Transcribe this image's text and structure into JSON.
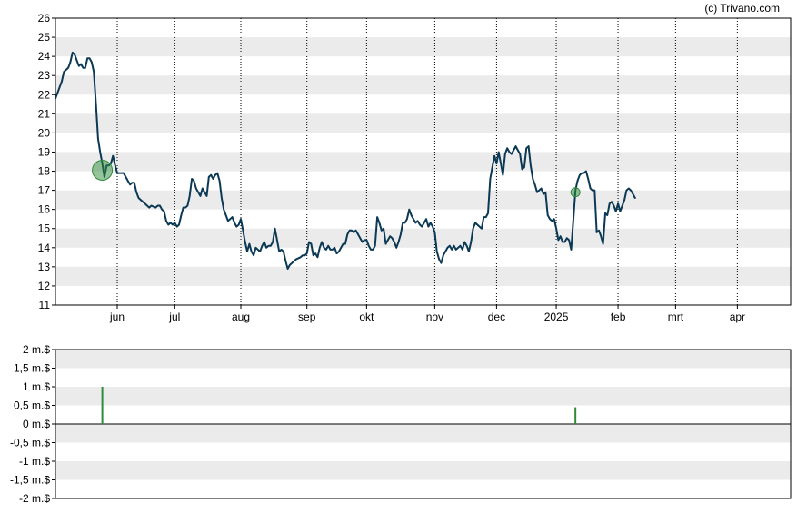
{
  "credit": "(c) Trivano.com",
  "colors": {
    "price_line": "#0b3954",
    "band": "#ebebeb",
    "marker": "#2e8b3a",
    "volume_bar": "#2e8b3a",
    "axis": "#000000"
  },
  "chart_data": [
    {
      "type": "line",
      "name": "price",
      "ylim": [
        11,
        26
      ],
      "yticks": [
        11,
        12,
        13,
        14,
        15,
        16,
        17,
        18,
        19,
        20,
        21,
        22,
        23,
        24,
        25,
        26
      ],
      "xlim": [
        0,
        345
      ],
      "xticks": [
        {
          "label": "jun",
          "x": 29
        },
        {
          "label": "jul",
          "x": 56
        },
        {
          "label": "aug",
          "x": 87
        },
        {
          "label": "sep",
          "x": 118
        },
        {
          "label": "okt",
          "x": 146
        },
        {
          "label": "nov",
          "x": 178
        },
        {
          "label": "dec",
          "x": 207
        },
        {
          "label": "2025",
          "x": 235
        },
        {
          "label": "feb",
          "x": 264
        },
        {
          "label": "mrt",
          "x": 291
        },
        {
          "label": "apr",
          "x": 320
        }
      ],
      "grid": "horizontal bands, dotted vertical lines at month ticks",
      "points": [
        [
          0,
          21.8
        ],
        [
          2,
          22.4
        ],
        [
          3,
          22.7
        ],
        [
          4,
          23.2
        ],
        [
          6,
          23.4
        ],
        [
          7,
          23.7
        ],
        [
          8,
          24.2
        ],
        [
          9,
          24.1
        ],
        [
          10,
          23.8
        ],
        [
          11,
          23.5
        ],
        [
          12,
          23.6
        ],
        [
          13,
          23.4
        ],
        [
          14,
          23.4
        ],
        [
          15,
          23.9
        ],
        [
          16,
          23.9
        ],
        [
          17,
          23.7
        ],
        [
          18,
          23.2
        ],
        [
          19,
          21.5
        ],
        [
          20,
          19.7
        ],
        [
          21,
          19.0
        ],
        [
          22,
          18.4
        ],
        [
          23,
          17.7
        ],
        [
          24,
          18.3
        ],
        [
          25,
          18.3
        ],
        [
          26,
          18.4
        ],
        [
          27,
          18.8
        ],
        [
          28,
          18.3
        ],
        [
          29,
          17.9
        ],
        [
          30,
          17.9
        ],
        [
          31,
          17.9
        ],
        [
          32,
          17.9
        ],
        [
          33,
          17.7
        ],
        [
          34,
          17.5
        ],
        [
          35,
          17.3
        ],
        [
          36,
          17.4
        ],
        [
          37,
          17.4
        ],
        [
          38,
          16.9
        ],
        [
          39,
          16.6
        ],
        [
          40,
          16.5
        ],
        [
          42,
          16.3
        ],
        [
          44,
          16.1
        ],
        [
          45,
          16.2
        ],
        [
          47,
          16.1
        ],
        [
          48,
          16.2
        ],
        [
          49,
          16.2
        ],
        [
          50,
          16.0
        ],
        [
          51,
          15.9
        ],
        [
          52,
          15.4
        ],
        [
          53,
          15.2
        ],
        [
          54,
          15.3
        ],
        [
          55,
          15.2
        ],
        [
          56,
          15.3
        ],
        [
          57,
          15.1
        ],
        [
          58,
          15.2
        ],
        [
          59,
          15.7
        ],
        [
          60,
          16.1
        ],
        [
          61,
          16.1
        ],
        [
          62,
          16.2
        ],
        [
          63,
          16.7
        ],
        [
          64,
          17.6
        ],
        [
          65,
          17.5
        ],
        [
          66,
          17.1
        ],
        [
          67,
          16.9
        ],
        [
          68,
          16.7
        ],
        [
          69,
          17.1
        ],
        [
          70,
          16.9
        ],
        [
          71,
          16.7
        ],
        [
          72,
          17.7
        ],
        [
          73,
          17.8
        ],
        [
          74,
          17.6
        ],
        [
          75,
          17.8
        ],
        [
          76,
          17.9
        ],
        [
          77,
          17.5
        ],
        [
          78,
          16.6
        ],
        [
          79,
          16.0
        ],
        [
          80,
          15.7
        ],
        [
          81,
          15.4
        ],
        [
          82,
          15.5
        ],
        [
          83,
          15.6
        ],
        [
          84,
          15.3
        ],
        [
          85,
          15.1
        ],
        [
          86,
          15.2
        ],
        [
          87,
          15.5
        ],
        [
          88,
          14.9
        ],
        [
          89,
          14.3
        ],
        [
          90,
          13.8
        ],
        [
          91,
          14.2
        ],
        [
          92,
          13.8
        ],
        [
          93,
          13.6
        ],
        [
          94,
          14.0
        ],
        [
          95,
          13.9
        ],
        [
          96,
          13.8
        ],
        [
          97,
          14.1
        ],
        [
          98,
          14.3
        ],
        [
          99,
          14.0
        ],
        [
          100,
          14.1
        ],
        [
          101,
          14.1
        ],
        [
          102,
          14.3
        ],
        [
          103,
          15.0
        ],
        [
          104,
          14.4
        ],
        [
          105,
          13.8
        ],
        [
          106,
          13.9
        ],
        [
          107,
          13.8
        ],
        [
          108,
          13.3
        ],
        [
          109,
          12.9
        ],
        [
          110,
          13.1
        ],
        [
          111,
          13.2
        ],
        [
          112,
          13.3
        ],
        [
          113,
          13.4
        ],
        [
          115,
          13.5
        ],
        [
          116,
          13.6
        ],
        [
          117,
          13.6
        ],
        [
          118,
          13.7
        ],
        [
          119,
          14.3
        ],
        [
          120,
          14.2
        ],
        [
          121,
          13.6
        ],
        [
          122,
          13.7
        ],
        [
          123,
          13.5
        ],
        [
          124,
          14.0
        ],
        [
          125,
          14.3
        ],
        [
          126,
          14.0
        ],
        [
          127,
          13.9
        ],
        [
          128,
          14.1
        ],
        [
          129,
          13.9
        ],
        [
          130,
          13.9
        ],
        [
          131,
          14.0
        ],
        [
          132,
          13.7
        ],
        [
          133,
          13.8
        ],
        [
          134,
          14.0
        ],
        [
          135,
          14.2
        ],
        [
          136,
          14.2
        ],
        [
          137,
          14.7
        ],
        [
          138,
          14.9
        ],
        [
          139,
          14.9
        ],
        [
          140,
          14.8
        ],
        [
          141,
          14.9
        ],
        [
          142,
          14.7
        ],
        [
          143,
          14.5
        ],
        [
          144,
          14.3
        ],
        [
          145,
          14.4
        ],
        [
          146,
          14.4
        ],
        [
          147,
          14.1
        ],
        [
          148,
          13.9
        ],
        [
          149,
          13.9
        ],
        [
          150,
          14.1
        ],
        [
          151,
          15.6
        ],
        [
          152,
          15.3
        ],
        [
          153,
          14.9
        ],
        [
          154,
          15.0
        ],
        [
          155,
          14.2
        ],
        [
          156,
          14.4
        ],
        [
          157,
          14.6
        ],
        [
          158,
          14.5
        ],
        [
          159,
          14.3
        ],
        [
          160,
          14.0
        ],
        [
          161,
          14.3
        ],
        [
          162,
          14.7
        ],
        [
          163,
          15.3
        ],
        [
          164,
          15.3
        ],
        [
          165,
          15.5
        ],
        [
          166,
          16.0
        ],
        [
          167,
          15.7
        ],
        [
          168,
          15.5
        ],
        [
          169,
          15.3
        ],
        [
          170,
          15.4
        ],
        [
          171,
          15.2
        ],
        [
          172,
          15.1
        ],
        [
          173,
          15.3
        ],
        [
          174,
          15.5
        ],
        [
          175,
          15.1
        ],
        [
          176,
          15.3
        ],
        [
          177,
          15.1
        ],
        [
          178,
          14.8
        ],
        [
          179,
          13.8
        ],
        [
          180,
          13.4
        ],
        [
          181,
          13.2
        ],
        [
          182,
          13.6
        ],
        [
          183,
          13.8
        ],
        [
          184,
          14.0
        ],
        [
          185,
          14.1
        ],
        [
          186,
          13.9
        ],
        [
          187,
          14.1
        ],
        [
          188,
          13.9
        ],
        [
          189,
          14.0
        ],
        [
          190,
          14.1
        ],
        [
          191,
          13.9
        ],
        [
          192,
          14.3
        ],
        [
          193,
          14.1
        ],
        [
          194,
          13.8
        ],
        [
          195,
          14.3
        ],
        [
          196,
          15.0
        ],
        [
          197,
          15.3
        ],
        [
          198,
          15.2
        ],
        [
          199,
          15.1
        ],
        [
          200,
          15.0
        ],
        [
          201,
          15.6
        ],
        [
          202,
          15.6
        ],
        [
          203,
          15.8
        ],
        [
          204,
          17.6
        ],
        [
          205,
          18.2
        ],
        [
          206,
          18.8
        ],
        [
          207,
          18.4
        ],
        [
          208,
          19.0
        ],
        [
          209,
          18.4
        ],
        [
          210,
          17.8
        ],
        [
          211,
          18.9
        ],
        [
          212,
          19.2
        ],
        [
          213,
          19.0
        ],
        [
          214,
          18.9
        ],
        [
          215,
          19.1
        ],
        [
          216,
          19.3
        ],
        [
          217,
          19.1
        ],
        [
          218,
          18.9
        ],
        [
          219,
          18.1
        ],
        [
          220,
          18.2
        ],
        [
          221,
          19.2
        ],
        [
          222,
          19.3
        ],
        [
          223,
          18.3
        ],
        [
          224,
          17.6
        ],
        [
          225,
          17.3
        ],
        [
          226,
          16.9
        ],
        [
          227,
          17.0
        ],
        [
          228,
          17.1
        ],
        [
          229,
          16.8
        ],
        [
          230,
          16.9
        ],
        [
          231,
          15.7
        ],
        [
          232,
          15.5
        ],
        [
          233,
          15.4
        ],
        [
          234,
          15.5
        ],
        [
          235,
          15.0
        ],
        [
          236,
          14.4
        ],
        [
          237,
          14.6
        ],
        [
          238,
          14.3
        ],
        [
          239,
          14.3
        ],
        [
          240,
          14.5
        ],
        [
          241,
          14.4
        ],
        [
          242,
          13.9
        ],
        [
          243,
          15.4
        ],
        [
          244,
          17.0
        ],
        [
          245,
          17.5
        ],
        [
          246,
          17.8
        ],
        [
          247,
          17.9
        ],
        [
          248,
          17.9
        ],
        [
          249,
          18.0
        ],
        [
          250,
          17.6
        ],
        [
          251,
          17.1
        ],
        [
          252,
          17.0
        ],
        [
          253,
          17.0
        ],
        [
          254,
          14.8
        ],
        [
          255,
          14.9
        ],
        [
          256,
          14.6
        ],
        [
          257,
          14.2
        ],
        [
          258,
          15.8
        ],
        [
          259,
          15.7
        ],
        [
          260,
          16.3
        ],
        [
          261,
          16.4
        ],
        [
          262,
          16.2
        ],
        [
          263,
          15.9
        ],
        [
          264,
          16.3
        ],
        [
          265,
          15.9
        ],
        [
          266,
          16.2
        ],
        [
          267,
          16.5
        ],
        [
          268,
          17.0
        ],
        [
          269,
          17.1
        ],
        [
          270,
          17.0
        ],
        [
          271,
          16.8
        ],
        [
          272,
          16.6
        ]
      ],
      "markers": [
        {
          "x": 22,
          "y": 18.05,
          "size": "large"
        },
        {
          "x": 244,
          "y": 16.9,
          "size": "small"
        }
      ]
    },
    {
      "type": "bar",
      "name": "volume",
      "ylim": [
        -2,
        2
      ],
      "yticks": [
        {
          "label": "2 m.$",
          "value": 2
        },
        {
          "label": "1,5 m.$",
          "value": 1.5
        },
        {
          "label": "1 m.$",
          "value": 1
        },
        {
          "label": "0,5 m.$",
          "value": 0.5
        },
        {
          "label": "0 m.$",
          "value": 0
        },
        {
          "label": "-0,5 m.$",
          "value": -0.5
        },
        {
          "label": "-1 m.$",
          "value": -1
        },
        {
          "label": "-1,5 m.$",
          "value": -1.5
        },
        {
          "label": "-2 m.$",
          "value": -2
        }
      ],
      "bars": [
        {
          "x": 22,
          "value": 1.0
        },
        {
          "x": 244,
          "value": 0.45
        }
      ]
    }
  ]
}
